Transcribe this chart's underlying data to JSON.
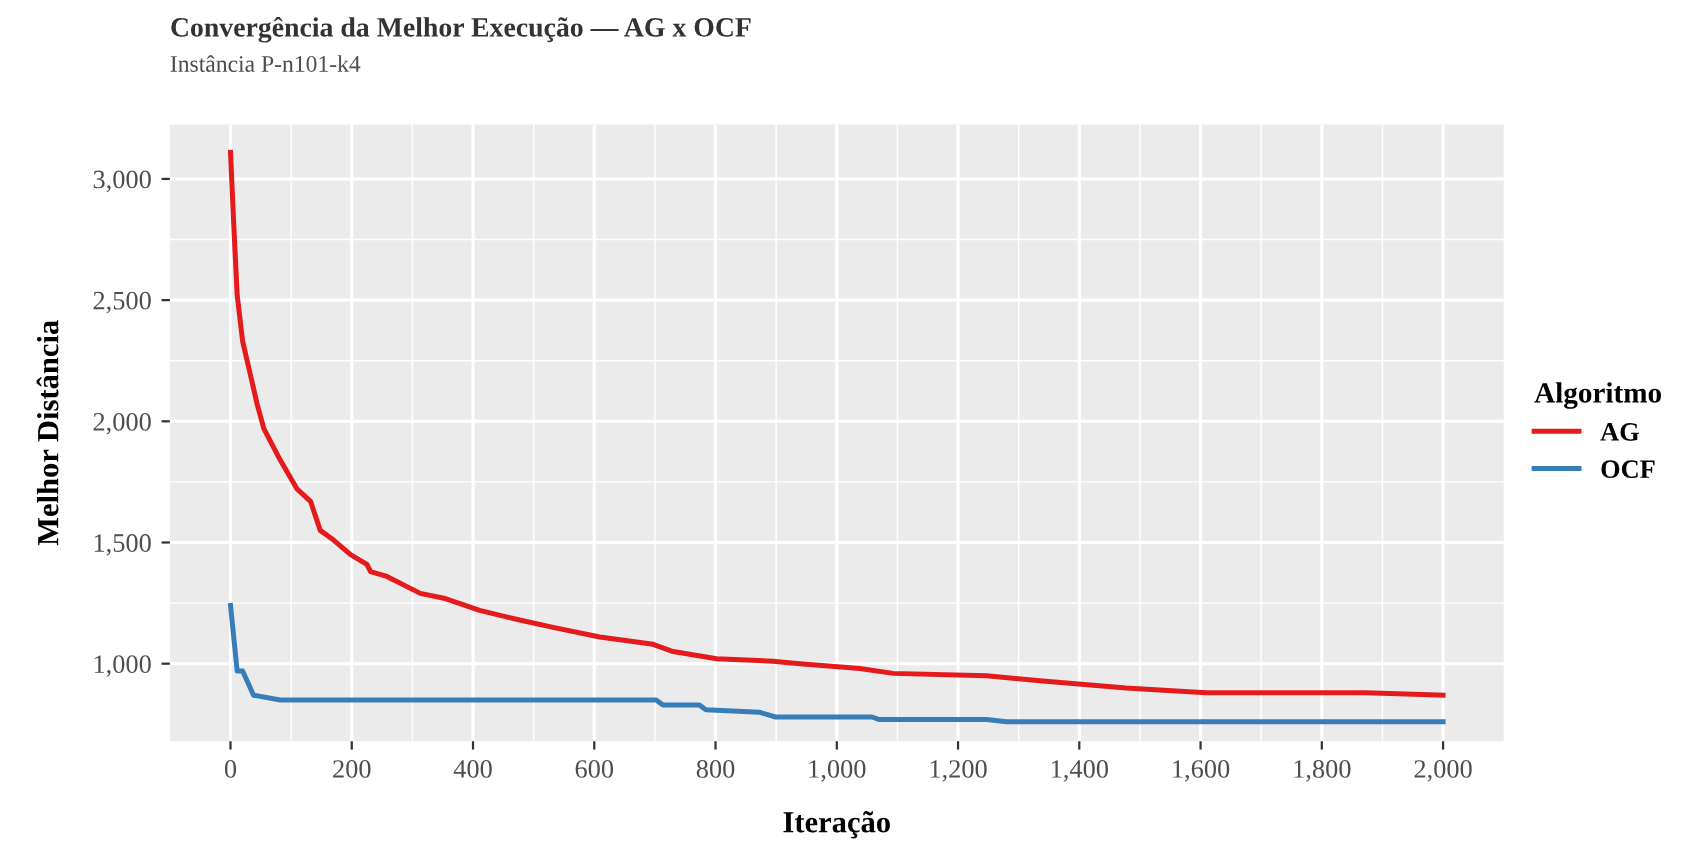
{
  "chart_data": {
    "type": "line",
    "title": "Convergência da Melhor Execução — AG x OCF",
    "subtitle": "Instância P-n101-k4",
    "xlabel": "Iteração",
    "ylabel": "Melhor Distância",
    "legend_title": "Algoritmo",
    "legend": "right",
    "grid": true,
    "xlim": [
      -100,
      2100
    ],
    "ylim": [
      680,
      3225
    ],
    "xticks": [
      0,
      200,
      400,
      600,
      800,
      {
        "value": 1000,
        "label": "1,000"
      },
      {
        "value": 1200,
        "label": "1,200"
      },
      {
        "value": 1400,
        "label": "1,400"
      },
      {
        "value": 1600,
        "label": "1,600"
      },
      {
        "value": 1800,
        "label": "1,800"
      },
      {
        "value": 2000,
        "label": "2,000"
      }
    ],
    "yticks": [
      {
        "value": 1000,
        "label": "1,000"
      },
      {
        "value": 1500,
        "label": "1,500"
      },
      {
        "value": 2000,
        "label": "2,000"
      },
      {
        "value": 2500,
        "label": "2,500"
      },
      {
        "value": 3000,
        "label": "3,000"
      }
    ],
    "series": [
      {
        "name": "AG",
        "color": "#e41a1c",
        "x": [
          0,
          5,
          11,
          20,
          33,
          44,
          55,
          82,
          110,
          132,
          148,
          170,
          198,
          225,
          231,
          258,
          313,
          352,
          411,
          477,
          532,
          609,
          697,
          730,
          802,
          895,
          939,
          1038,
          1093,
          1247,
          1335,
          1477,
          1609,
          1872,
          2000
        ],
        "values": [
          3110,
          2830,
          2520,
          2330,
          2190,
          2070,
          1970,
          1840,
          1720,
          1670,
          1550,
          1510,
          1450,
          1410,
          1380,
          1360,
          1290,
          1270,
          1220,
          1180,
          1150,
          1110,
          1080,
          1050,
          1020,
          1010,
          1000,
          980,
          960,
          950,
          930,
          900,
          880,
          880,
          870
        ]
      },
      {
        "name": "OCF",
        "color": "#377eb8",
        "x": [
          0,
          11,
          20,
          38,
          82,
          126,
          702,
          713,
          773,
          784,
          872,
          899,
          1058,
          1069,
          1247,
          1280,
          2000
        ],
        "values": [
          1240,
          970,
          970,
          870,
          850,
          850,
          850,
          830,
          830,
          810,
          800,
          780,
          780,
          770,
          770,
          760,
          760
        ]
      }
    ]
  }
}
